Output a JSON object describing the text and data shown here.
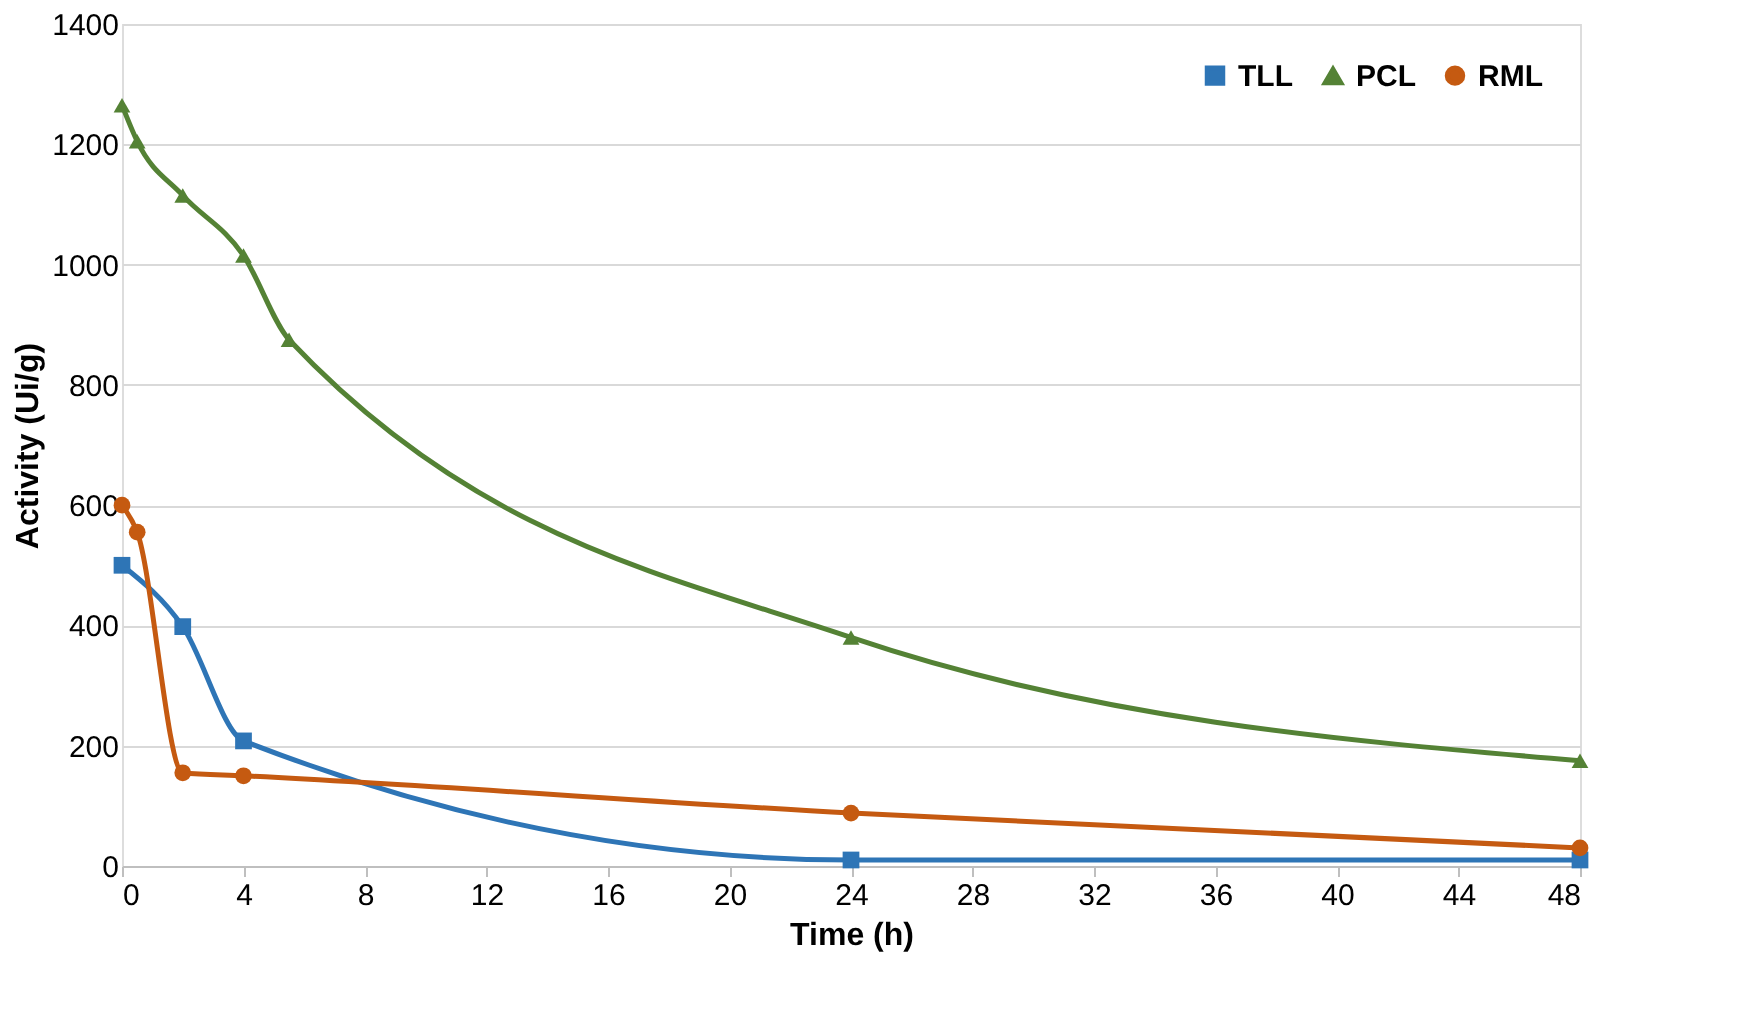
{
  "chart_data": {
    "type": "line",
    "xlabel": "Time (h)",
    "ylabel": "Activity (Ui/g)",
    "xlim": [
      0,
      48
    ],
    "xticks": [
      0,
      4,
      8,
      12,
      16,
      20,
      24,
      28,
      32,
      36,
      40,
      44,
      48
    ],
    "ylim": [
      0,
      1400
    ],
    "yticks": [
      0,
      200,
      400,
      600,
      800,
      1000,
      1200,
      1400
    ],
    "grid": "y",
    "legend": "top right",
    "line_style": "solid",
    "series": [
      {
        "name": "TLL",
        "color": "#2e75b6",
        "marker": "square",
        "x": [
          0,
          2,
          4,
          24,
          48
        ],
        "values": [
          500,
          398,
          208,
          10,
          10
        ]
      },
      {
        "name": "PCL",
        "color": "#548235",
        "marker": "triangle",
        "x": [
          0,
          0.5,
          2,
          4,
          5.5,
          24,
          48
        ],
        "values": [
          1265,
          1205,
          1115,
          1015,
          875,
          380,
          175
        ]
      },
      {
        "name": "RML",
        "color": "#c55a11",
        "marker": "circle",
        "x": [
          0,
          0.5,
          2,
          4,
          24,
          48
        ],
        "values": [
          600,
          555,
          155,
          150,
          88,
          30
        ]
      }
    ]
  }
}
